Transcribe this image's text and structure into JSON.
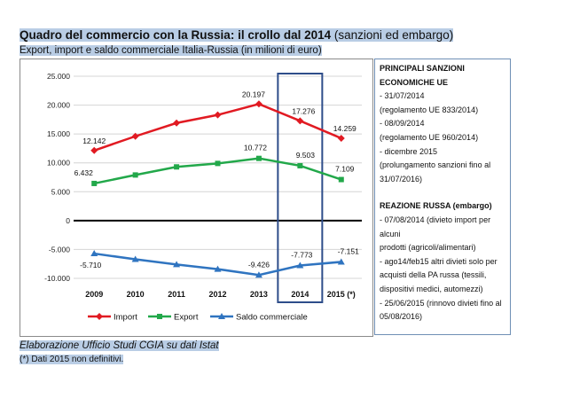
{
  "header": {
    "title_main": "Quadro del commercio con la Russia: il crollo dal 2014",
    "title_suffix": " (sanzioni ed embargo)",
    "subtitle": "Export, import e saldo commerciale Italia-Russia (in milioni di euro)"
  },
  "chart_data": {
    "type": "line",
    "categories": [
      "2009",
      "2010",
      "2011",
      "2012",
      "2013",
      "2014",
      "2015 (*)"
    ],
    "series": [
      {
        "name": "Import",
        "color": "#e11a22",
        "values": [
          12142,
          14600,
          16900,
          18300,
          20197,
          17276,
          14259
        ],
        "labels": [
          "12.142",
          null,
          null,
          null,
          "20.197",
          "17.276",
          "14.259"
        ]
      },
      {
        "name": "Export",
        "color": "#22a84a",
        "values": [
          6432,
          7900,
          9300,
          9900,
          10772,
          9503,
          7109
        ],
        "labels": [
          "6.432",
          null,
          null,
          null,
          "10.772",
          "9.503",
          "7.109"
        ]
      },
      {
        "name": "Saldo commerciale",
        "color": "#2f74c0",
        "values": [
          -5710,
          -6700,
          -7600,
          -8400,
          -9426,
          -7773,
          -7151
        ],
        "labels": [
          "-5.710",
          null,
          null,
          null,
          "-9.426",
          "-7.773",
          "-7.151"
        ]
      }
    ],
    "ylim": [
      -10000,
      25000
    ],
    "yticks": [
      -10000,
      -5000,
      0,
      5000,
      10000,
      15000,
      20000,
      25000
    ],
    "ytick_labels": [
      "-10.000",
      "-5.000",
      "0",
      "5.000",
      "10.000",
      "15.000",
      "20.000",
      "25.000"
    ],
    "grid": true,
    "legend_position": "bottom",
    "highlight_category": "2014",
    "highlight_color": "#2e4d8a"
  },
  "sanctions": {
    "heading": "PRINCIPALI SANZIONI ECONOMICHE UE",
    "lines": [
      "- 31/07/2014",
      "(regolamento UE 833/2014)",
      "- 08/09/2014",
      "(regolamento UE 960/2014)",
      "- dicembre 2015",
      "(prolungamento sanzioni fino al",
      "31/07/2016)"
    ],
    "russian_heading": "REAZIONE RUSSA (embargo)",
    "russian_lines": [
      "- 07/08/2014 (divieto import per alcuni",
      "prodotti (agricoli/alimentari)",
      "- ago14/feb15 altri divieti solo per",
      "acquisti della PA russa (tessili,",
      "dispositivi medici, automezzi)",
      "- 25/06/2015 (rinnovo divieti fino al",
      "05/08/2016)"
    ]
  },
  "footer": {
    "source": "Elaborazione Ufficio Studi CGIA su dati Istat",
    "note": "(*) Dati 2015 non definitivi."
  }
}
